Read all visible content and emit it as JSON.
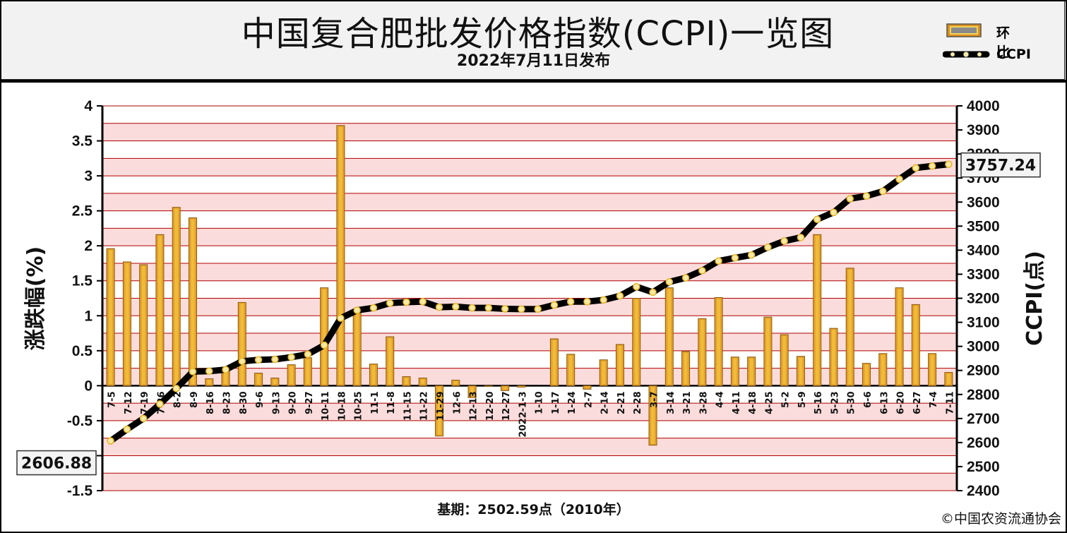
{
  "header": {
    "title": "中国复合肥批发价格指数(CCPI)一览图",
    "subtitle": "2022年7月11日发布"
  },
  "legend": {
    "bar_label": "环比",
    "line_label": "CCPI"
  },
  "footer": {
    "base_note": "基期：2502.59点（2010年）",
    "copyright": "©中国农资流通协会"
  },
  "colors": {
    "bar_fill": "#E6A028",
    "bar_edge": "#8A5A10",
    "line": "#000000",
    "marker": "#F6E9A8",
    "band": "#FBDCDC",
    "grid": "#B00000"
  },
  "chart_data": {
    "type": "bar+line",
    "x_tick_labels": [
      "7-5",
      "7-12",
      "7-19",
      "7-26",
      "8-2",
      "8-9",
      "8-16",
      "8-23",
      "8-30",
      "9-6",
      "9-13",
      "9-20",
      "9-27",
      "10-11",
      "10-18",
      "10-25",
      "11-1",
      "11-8",
      "11-15",
      "11-22",
      "11-29",
      "12-6",
      "12-13",
      "12-20",
      "12-27",
      "2022-1-3",
      "1-10",
      "1-17",
      "1-24",
      "2-7",
      "2-14",
      "2-21",
      "2-28",
      "3-7",
      "3-14",
      "3-21",
      "3-28",
      "4-4",
      "4-11",
      "4-18",
      "4-25",
      "5-2",
      "5-9",
      "5-16",
      "5-23",
      "5-30",
      "6-6",
      "6-13",
      "6-20",
      "6-27",
      "7-4",
      "7-11"
    ],
    "series": [
      {
        "name": "环比",
        "axis": "left",
        "values": [
          1.96,
          1.77,
          1.73,
          2.16,
          2.55,
          2.4,
          0.1,
          0.2,
          1.19,
          0.18,
          0.11,
          0.3,
          0.4,
          1.4,
          3.72,
          1.05,
          0.31,
          0.7,
          0.13,
          0.11,
          -0.72,
          0.08,
          -0.17,
          -0.01,
          -0.07,
          -0.02,
          0.0,
          0.67,
          0.45,
          -0.05,
          0.37,
          0.59,
          1.25,
          -0.85,
          1.4,
          0.49,
          0.96,
          1.26,
          0.41,
          0.41,
          0.98,
          0.73,
          0.42,
          2.16,
          0.82,
          1.68,
          0.32,
          0.46,
          1.4,
          1.16,
          0.46,
          0.19
        ]
      },
      {
        "name": "CCPI",
        "axis": "right",
        "values": [
          2606.88,
          2655,
          2700,
          2760,
          2825,
          2895,
          2897,
          2903,
          2938,
          2944,
          2946,
          2955,
          2967,
          3005,
          3117,
          3150,
          3160,
          3180,
          3184,
          3186,
          3163,
          3165,
          3160,
          3160,
          3156,
          3155,
          3155,
          3172,
          3186,
          3186,
          3193,
          3210,
          3248,
          3225,
          3268,
          3285,
          3315,
          3355,
          3368,
          3380,
          3412,
          3438,
          3453,
          3528,
          3557,
          3614,
          3625,
          3645,
          3695,
          3742,
          3750,
          3757.24
        ]
      }
    ],
    "left_axis": {
      "label": "涨跌幅(%)",
      "range": [
        -1.5,
        4
      ],
      "ticks": [
        "4",
        "3.5",
        "3",
        "2.5",
        "2",
        "1.5",
        "1",
        "0.5",
        "0",
        "-0.5",
        "-1",
        "-1.5"
      ]
    },
    "right_axis": {
      "label": "CCPI(点)",
      "range": [
        2400,
        4000
      ],
      "ticks": [
        "4000",
        "3900",
        "3800",
        "3700",
        "3600",
        "3500",
        "3400",
        "3300",
        "3200",
        "3100",
        "3000",
        "2900",
        "2800",
        "2700",
        "2600",
        "2500",
        "2400"
      ]
    },
    "start_label": "2606.88",
    "end_label": "3757.24"
  }
}
